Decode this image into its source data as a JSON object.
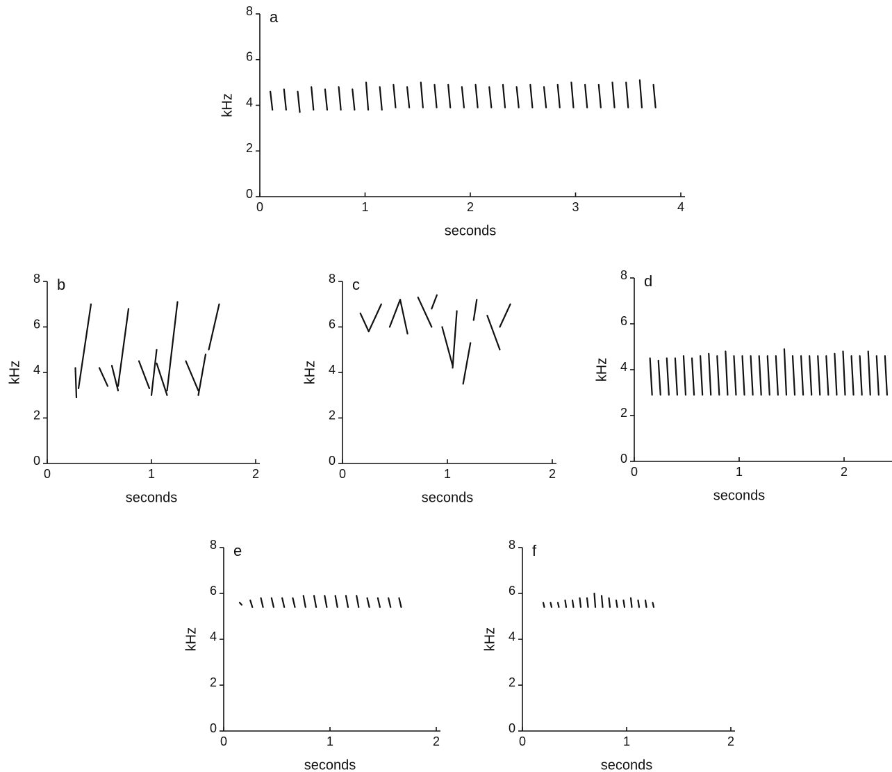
{
  "chart_data": [
    {
      "type": "spectrogram",
      "label": "a",
      "xlabel": "seconds",
      "ylabel": "kHz",
      "xlim": [
        0,
        4
      ],
      "ylim": [
        0,
        8
      ],
      "xticks": [
        0,
        1,
        2,
        3,
        4
      ],
      "yticks": [
        0,
        2,
        4,
        6,
        8
      ],
      "strokes": [
        [
          0.1,
          4.6,
          0.12,
          3.8
        ],
        [
          0.23,
          4.7,
          0.25,
          3.8
        ],
        [
          0.36,
          4.6,
          0.38,
          3.7
        ],
        [
          0.49,
          4.8,
          0.51,
          3.8
        ],
        [
          0.62,
          4.7,
          0.64,
          3.8
        ],
        [
          0.75,
          4.8,
          0.77,
          3.8
        ],
        [
          0.88,
          4.7,
          0.9,
          3.8
        ],
        [
          1.01,
          5.0,
          1.03,
          3.8
        ],
        [
          1.14,
          4.8,
          1.16,
          3.8
        ],
        [
          1.27,
          4.9,
          1.29,
          3.9
        ],
        [
          1.4,
          4.8,
          1.42,
          3.9
        ],
        [
          1.53,
          5.0,
          1.55,
          3.9
        ],
        [
          1.66,
          4.9,
          1.68,
          3.9
        ],
        [
          1.79,
          4.9,
          1.81,
          3.9
        ],
        [
          1.92,
          4.8,
          1.94,
          3.9
        ],
        [
          2.05,
          4.9,
          2.07,
          3.9
        ],
        [
          2.18,
          4.8,
          2.2,
          3.9
        ],
        [
          2.31,
          4.9,
          2.33,
          3.9
        ],
        [
          2.44,
          4.8,
          2.46,
          3.9
        ],
        [
          2.57,
          4.9,
          2.59,
          3.9
        ],
        [
          2.7,
          4.8,
          2.72,
          3.9
        ],
        [
          2.83,
          4.9,
          2.85,
          3.9
        ],
        [
          2.96,
          5.0,
          2.98,
          3.9
        ],
        [
          3.09,
          4.9,
          3.11,
          3.9
        ],
        [
          3.22,
          4.9,
          3.24,
          3.9
        ],
        [
          3.35,
          5.0,
          3.37,
          3.9
        ],
        [
          3.48,
          5.0,
          3.5,
          3.9
        ],
        [
          3.61,
          5.1,
          3.63,
          3.9
        ],
        [
          3.74,
          4.9,
          3.76,
          3.9
        ]
      ]
    },
    {
      "type": "spectrogram",
      "label": "b",
      "xlabel": "seconds",
      "ylabel": "kHz",
      "xlim": [
        0,
        2
      ],
      "ylim": [
        0,
        8
      ],
      "xticks": [
        0,
        1,
        2
      ],
      "yticks": [
        0,
        2,
        4,
        6,
        8
      ],
      "strokes": [
        [
          0.27,
          4.2,
          0.28,
          2.9
        ],
        [
          0.3,
          3.3,
          0.42,
          7.0
        ],
        [
          0.5,
          4.2,
          0.58,
          3.4
        ],
        [
          0.62,
          4.3,
          0.68,
          3.2
        ],
        [
          0.68,
          3.4,
          0.78,
          6.8
        ],
        [
          0.88,
          4.5,
          0.98,
          3.3
        ],
        [
          1.0,
          3.0,
          1.05,
          5.0
        ],
        [
          1.05,
          4.4,
          1.15,
          3.0
        ],
        [
          1.15,
          3.2,
          1.25,
          7.1
        ],
        [
          1.33,
          4.5,
          1.45,
          3.2
        ],
        [
          1.45,
          3.0,
          1.52,
          4.8
        ],
        [
          1.55,
          5.0,
          1.65,
          7.0
        ]
      ]
    },
    {
      "type": "spectrogram",
      "label": "c",
      "xlabel": "seconds",
      "ylabel": "kHz",
      "xlim": [
        0,
        2
      ],
      "ylim": [
        0,
        8
      ],
      "xticks": [
        0,
        1,
        2
      ],
      "yticks": [
        0,
        2,
        4,
        6,
        8
      ],
      "strokes": [
        [
          0.17,
          6.6,
          0.25,
          5.8
        ],
        [
          0.25,
          5.8,
          0.37,
          7.0
        ],
        [
          0.45,
          6.0,
          0.55,
          7.2
        ],
        [
          0.55,
          7.2,
          0.62,
          5.7
        ],
        [
          0.72,
          7.3,
          0.85,
          6.0
        ],
        [
          0.85,
          6.8,
          0.9,
          7.4
        ],
        [
          0.95,
          6.0,
          1.05,
          4.3
        ],
        [
          1.05,
          4.2,
          1.09,
          6.7
        ],
        [
          1.15,
          3.5,
          1.22,
          5.3
        ],
        [
          1.25,
          6.3,
          1.28,
          7.2
        ],
        [
          1.38,
          6.5,
          1.5,
          5.0
        ],
        [
          1.5,
          6.0,
          1.6,
          7.0
        ]
      ]
    },
    {
      "type": "spectrogram",
      "label": "d",
      "xlabel": "seconds",
      "ylabel": "kHz",
      "xlim": [
        0,
        2.5
      ],
      "ylim": [
        0,
        8
      ],
      "xticks": [
        0,
        1,
        2
      ],
      "yticks": [
        0,
        2,
        4,
        6,
        8
      ],
      "strokes": [
        [
          0.15,
          4.5,
          0.17,
          2.9
        ],
        [
          0.23,
          4.4,
          0.25,
          2.9
        ],
        [
          0.31,
          4.5,
          0.33,
          2.9
        ],
        [
          0.39,
          4.5,
          0.41,
          2.9
        ],
        [
          0.47,
          4.6,
          0.49,
          2.9
        ],
        [
          0.55,
          4.5,
          0.57,
          2.9
        ],
        [
          0.63,
          4.6,
          0.65,
          2.9
        ],
        [
          0.71,
          4.7,
          0.73,
          2.9
        ],
        [
          0.79,
          4.6,
          0.81,
          2.9
        ],
        [
          0.87,
          4.8,
          0.89,
          2.9
        ],
        [
          0.95,
          4.6,
          0.97,
          2.9
        ],
        [
          1.03,
          4.6,
          1.05,
          2.9
        ],
        [
          1.11,
          4.6,
          1.13,
          2.9
        ],
        [
          1.19,
          4.6,
          1.21,
          2.9
        ],
        [
          1.27,
          4.6,
          1.29,
          2.9
        ],
        [
          1.35,
          4.6,
          1.37,
          2.9
        ],
        [
          1.43,
          4.9,
          1.45,
          2.9
        ],
        [
          1.51,
          4.6,
          1.53,
          2.9
        ],
        [
          1.59,
          4.6,
          1.61,
          2.9
        ],
        [
          1.67,
          4.6,
          1.69,
          2.9
        ],
        [
          1.75,
          4.6,
          1.77,
          2.9
        ],
        [
          1.83,
          4.6,
          1.85,
          2.9
        ],
        [
          1.91,
          4.7,
          1.93,
          2.9
        ],
        [
          1.99,
          4.8,
          2.01,
          2.9
        ],
        [
          2.07,
          4.6,
          2.09,
          2.9
        ],
        [
          2.15,
          4.6,
          2.17,
          2.9
        ],
        [
          2.23,
          4.8,
          2.25,
          2.9
        ],
        [
          2.31,
          4.6,
          2.33,
          2.9
        ],
        [
          2.39,
          4.6,
          2.41,
          2.9
        ]
      ]
    },
    {
      "type": "spectrogram",
      "label": "e",
      "xlabel": "seconds",
      "ylabel": "kHz",
      "xlim": [
        0,
        2
      ],
      "ylim": [
        0,
        8
      ],
      "xticks": [
        0,
        1,
        2
      ],
      "yticks": [
        0,
        2,
        4,
        6,
        8
      ],
      "strokes": [
        [
          0.15,
          5.6,
          0.17,
          5.5
        ],
        [
          0.25,
          5.7,
          0.27,
          5.4
        ],
        [
          0.35,
          5.8,
          0.37,
          5.4
        ],
        [
          0.45,
          5.8,
          0.47,
          5.4
        ],
        [
          0.55,
          5.8,
          0.57,
          5.4
        ],
        [
          0.65,
          5.8,
          0.67,
          5.4
        ],
        [
          0.75,
          5.9,
          0.77,
          5.4
        ],
        [
          0.85,
          5.9,
          0.87,
          5.4
        ],
        [
          0.95,
          5.9,
          0.97,
          5.4
        ],
        [
          1.05,
          5.9,
          1.07,
          5.4
        ],
        [
          1.15,
          5.9,
          1.17,
          5.4
        ],
        [
          1.25,
          5.9,
          1.27,
          5.4
        ],
        [
          1.35,
          5.8,
          1.37,
          5.4
        ],
        [
          1.45,
          5.8,
          1.47,
          5.4
        ],
        [
          1.55,
          5.8,
          1.57,
          5.4
        ],
        [
          1.65,
          5.8,
          1.67,
          5.4
        ]
      ]
    },
    {
      "type": "spectrogram",
      "label": "f",
      "xlabel": "seconds",
      "ylabel": "kHz",
      "xlim": [
        0,
        2
      ],
      "ylim": [
        0,
        8
      ],
      "xticks": [
        0,
        1,
        2
      ],
      "yticks": [
        0,
        2,
        4,
        6,
        8
      ],
      "strokes": [
        [
          0.2,
          5.6,
          0.21,
          5.4
        ],
        [
          0.27,
          5.6,
          0.28,
          5.4
        ],
        [
          0.34,
          5.6,
          0.35,
          5.4
        ],
        [
          0.41,
          5.7,
          0.42,
          5.4
        ],
        [
          0.48,
          5.7,
          0.49,
          5.4
        ],
        [
          0.55,
          5.8,
          0.56,
          5.4
        ],
        [
          0.62,
          5.8,
          0.63,
          5.4
        ],
        [
          0.69,
          6.0,
          0.7,
          5.4
        ],
        [
          0.76,
          5.9,
          0.77,
          5.4
        ],
        [
          0.83,
          5.8,
          0.84,
          5.4
        ],
        [
          0.9,
          5.7,
          0.91,
          5.4
        ],
        [
          0.97,
          5.7,
          0.98,
          5.4
        ],
        [
          1.04,
          5.8,
          1.05,
          5.4
        ],
        [
          1.11,
          5.7,
          1.12,
          5.4
        ],
        [
          1.18,
          5.7,
          1.19,
          5.4
        ],
        [
          1.25,
          5.6,
          1.26,
          5.4
        ]
      ]
    }
  ]
}
